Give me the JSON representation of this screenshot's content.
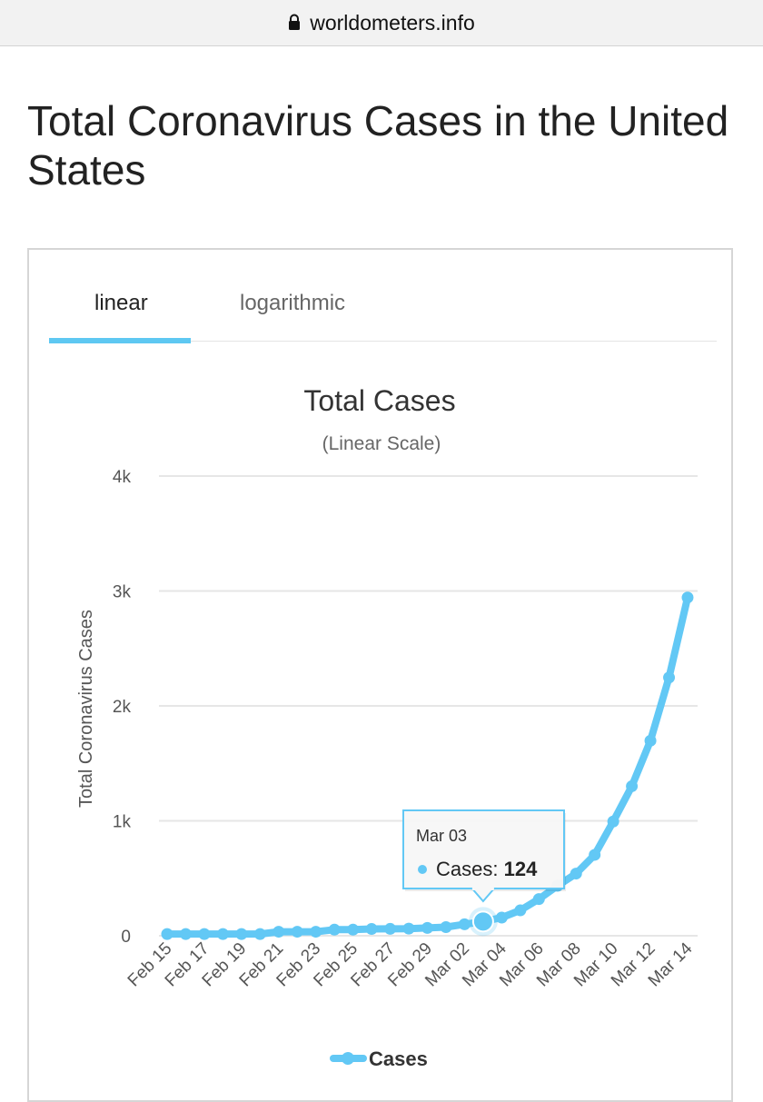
{
  "browser": {
    "url": "worldometers.info"
  },
  "page": {
    "title": "Total Coronavirus Cases in the United States"
  },
  "tabs": [
    {
      "label": "linear",
      "active": true
    },
    {
      "label": "logarithmic",
      "active": false
    }
  ],
  "colors": {
    "accent": "#5ec8f2",
    "series": "#62c8f5",
    "grid": "#e6e6e6"
  },
  "tooltip": {
    "date": "Mar 03",
    "series": "Cases",
    "value": "124"
  },
  "chart_data": {
    "type": "line",
    "title": "Total Cases",
    "subtitle": "(Linear Scale)",
    "ylabel": "Total Coronavirus Cases",
    "xlabel": "",
    "ylim": [
      0,
      4000
    ],
    "y_ticks": [
      "0",
      "1k",
      "2k",
      "3k",
      "4k"
    ],
    "x": [
      "Feb 15",
      "Feb 16",
      "Feb 17",
      "Feb 18",
      "Feb 19",
      "Feb 20",
      "Feb 21",
      "Feb 22",
      "Feb 23",
      "Feb 24",
      "Feb 25",
      "Feb 26",
      "Feb 27",
      "Feb 28",
      "Feb 29",
      "Mar 01",
      "Mar 02",
      "Mar 03",
      "Mar 04",
      "Mar 05",
      "Mar 06",
      "Mar 07",
      "Mar 08",
      "Mar 09",
      "Mar 10",
      "Mar 11",
      "Mar 12",
      "Mar 13",
      "Mar 14"
    ],
    "x_tick_labels": [
      "Feb 15",
      "Feb 17",
      "Feb 19",
      "Feb 21",
      "Feb 23",
      "Feb 25",
      "Feb 27",
      "Feb 29",
      "Mar 02",
      "Mar 04",
      "Mar 06",
      "Mar 08",
      "Mar 10",
      "Mar 12",
      "Mar 14"
    ],
    "series": [
      {
        "name": "Cases",
        "values": [
          15,
          15,
          15,
          15,
          15,
          15,
          35,
          35,
          35,
          53,
          53,
          59,
          60,
          62,
          68,
          75,
          100,
          124,
          158,
          221,
          319,
          435,
          541,
          704,
          994,
          1301,
          1697,
          2247,
          2943
        ]
      }
    ],
    "legend": {
      "position": "bottom-center",
      "label": "Cases"
    },
    "grid": true
  }
}
